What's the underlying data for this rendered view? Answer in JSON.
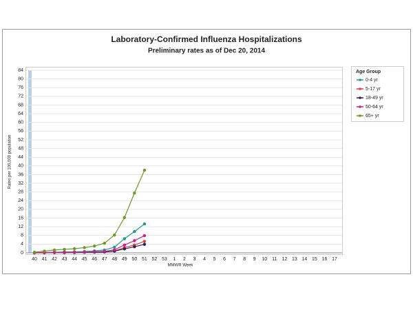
{
  "chart_data": {
    "type": "line",
    "title": "Laboratory-Confirmed Influenza Hospitalizations",
    "subtitle": "Preliminary rates as of Dec 20, 2014",
    "y_label": "Rates per 100,000 population",
    "x_label": "MMWR Week",
    "legend_title": "Age Group",
    "legend": "right",
    "grid": true,
    "categories": [
      "40",
      "41",
      "42",
      "43",
      "44",
      "45",
      "46",
      "47",
      "48",
      "49",
      "50",
      "51",
      "52",
      "53",
      "1",
      "2",
      "3",
      "4",
      "5",
      "6",
      "7",
      "8",
      "9",
      "10",
      "11",
      "12",
      "13",
      "14",
      "15",
      "16",
      "17"
    ],
    "ylim": [
      0,
      84
    ],
    "yticks": [
      0,
      4,
      8,
      12,
      16,
      20,
      24,
      28,
      32,
      36,
      40,
      44,
      48,
      52,
      56,
      60,
      64,
      68,
      72,
      76,
      80,
      84
    ],
    "series": [
      {
        "name": "0-4 yr",
        "color": "#1f9a8a",
        "values": [
          0.1,
          0.2,
          0.3,
          0.4,
          0.5,
          0.6,
          0.9,
          1.3,
          2.6,
          6.5,
          9.8,
          13.3,
          null,
          null,
          null,
          null,
          null,
          null,
          null,
          null,
          null,
          null,
          null,
          null,
          null,
          null,
          null,
          null,
          null,
          null,
          null
        ]
      },
      {
        "name": "5-17 yr",
        "color": "#e0403a",
        "values": [
          0,
          0.1,
          0.1,
          0.1,
          0.2,
          0.2,
          0.3,
          0.4,
          0.9,
          2.4,
          3.6,
          5.3,
          null,
          null,
          null,
          null,
          null,
          null,
          null,
          null,
          null,
          null,
          null,
          null,
          null,
          null,
          null,
          null,
          null,
          null,
          null
        ]
      },
      {
        "name": "18-49 yr",
        "color": "#2b1f5c",
        "values": [
          0,
          0,
          0.1,
          0.1,
          0.1,
          0.2,
          0.3,
          0.4,
          0.8,
          1.8,
          2.8,
          3.9,
          null,
          null,
          null,
          null,
          null,
          null,
          null,
          null,
          null,
          null,
          null,
          null,
          null,
          null,
          null,
          null,
          null,
          null,
          null
        ]
      },
      {
        "name": "50-64 yr",
        "color": "#cc1f8a",
        "values": [
          0,
          0.1,
          0.1,
          0.2,
          0.2,
          0.3,
          0.5,
          0.7,
          1.4,
          3.6,
          5.6,
          7.9,
          null,
          null,
          null,
          null,
          null,
          null,
          null,
          null,
          null,
          null,
          null,
          null,
          null,
          null,
          null,
          null,
          null,
          null,
          null
        ]
      },
      {
        "name": "65+ yr",
        "color": "#6a9a1f",
        "values": [
          0.3,
          0.8,
          1.3,
          1.6,
          1.9,
          2.4,
          3.1,
          4.4,
          8.2,
          16.2,
          27.5,
          38,
          null,
          null,
          null,
          null,
          null,
          null,
          null,
          null,
          null,
          null,
          null,
          null,
          null,
          null,
          null,
          null,
          null,
          null,
          null
        ]
      }
    ]
  }
}
